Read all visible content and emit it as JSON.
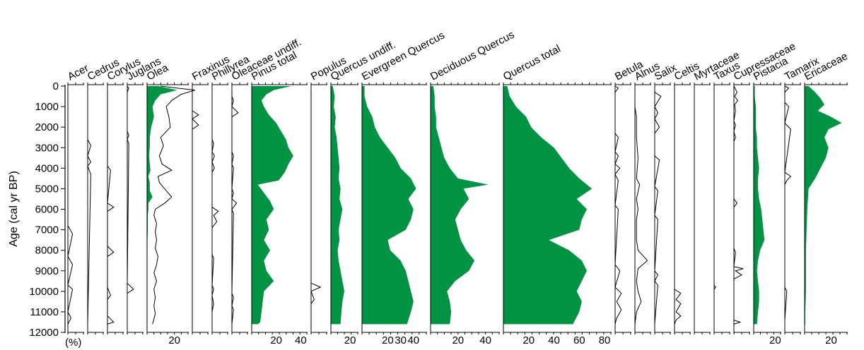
{
  "chart_data": {
    "type": "area",
    "ylabel": "Age (cal yr BP)",
    "yunits_note": "(%)",
    "ylim": [
      0,
      12000
    ],
    "yticks": [
      0,
      1000,
      2000,
      3000,
      4000,
      5000,
      6000,
      7000,
      8000,
      9000,
      10000,
      11000,
      12000
    ],
    "fill_color": "#009344",
    "line_color": "#000000",
    "panels": [
      {
        "name": "Acer",
        "style": "line",
        "xmax": 5,
        "ages": [
          0,
          6800,
          7200,
          8300,
          8700,
          9700,
          9900,
          11000,
          11300,
          11600
        ],
        "values": [
          0,
          0,
          1.5,
          0,
          1.5,
          0,
          1.5,
          0,
          1,
          0
        ]
      },
      {
        "name": "Cedrus",
        "style": "line",
        "xmax": 5,
        "ages": [
          0,
          2600,
          2900,
          3400,
          3700,
          3900,
          4300,
          11600
        ],
        "values": [
          0,
          0,
          1,
          0,
          1,
          0,
          1,
          0
        ]
      },
      {
        "name": "Corylus",
        "style": "line",
        "xmax": 5,
        "ages": [
          0,
          3900,
          4100,
          5700,
          5900,
          6100,
          7800,
          8100,
          8300,
          9800,
          10200,
          10400,
          11200,
          11500,
          11600
        ],
        "values": [
          0,
          0,
          1,
          0,
          2,
          0,
          0,
          2,
          0,
          0,
          1,
          0,
          0,
          2,
          0
        ]
      },
      {
        "name": "Juglans",
        "style": "line",
        "xmax": 5,
        "ages": [
          0,
          100,
          300,
          2200,
          2400,
          2600,
          2800,
          9600,
          9900,
          10100
        ],
        "values": [
          0,
          0.5,
          0,
          0,
          0.5,
          0,
          0.5,
          0,
          2,
          0
        ]
      },
      {
        "name": "Olea",
        "style": "dual",
        "xmax": 30,
        "ticks": [
          20
        ],
        "ages": [
          0,
          200,
          400,
          700,
          1000,
          1500,
          2000,
          2500,
          2900,
          3400,
          3800,
          4100,
          4400,
          4700,
          5100,
          5400,
          5700,
          6000,
          6300,
          6700,
          7100,
          7500,
          7900,
          8300,
          8700,
          9100,
          9500,
          9900,
          10300,
          10700,
          11100,
          11600
        ],
        "values": [
          8,
          22,
          10,
          6,
          4,
          5,
          3,
          2,
          2,
          1.5,
          2,
          2.5,
          1,
          2,
          2,
          4,
          1,
          1,
          0.5,
          0.5,
          0.5,
          0.3,
          0.3,
          0.2,
          0.2,
          0.2,
          0.2,
          0.2,
          0.2,
          0.2,
          0.2,
          0.2
        ],
        "total": [
          10,
          35,
          25,
          18,
          14,
          16,
          17,
          10,
          12,
          9,
          11,
          18,
          8,
          9,
          14,
          18,
          13,
          6,
          5,
          7,
          6,
          7,
          6,
          8,
          7,
          5,
          7,
          5,
          6,
          5,
          6,
          4
        ]
      },
      {
        "name": "Fraxinus",
        "style": "line",
        "xmax": 5,
        "ages": [
          0,
          1200,
          1400,
          1600,
          1900,
          2100,
          11600
        ],
        "values": [
          0,
          0,
          2,
          0,
          2,
          0,
          0
        ]
      },
      {
        "name": "Phillyrea",
        "style": "line",
        "xmax": 10,
        "ages": [
          0,
          2600,
          2800,
          3200,
          3400,
          3700,
          4000,
          4200,
          5900,
          6100,
          6300,
          6600,
          6900,
          8200,
          8400,
          9700,
          9900,
          10200,
          10600,
          11000,
          11600
        ],
        "values": [
          0,
          0,
          1,
          0,
          1.5,
          0,
          1.5,
          0,
          0,
          4,
          1,
          3,
          0,
          0,
          1,
          0,
          1,
          0,
          1,
          0,
          0
        ]
      },
      {
        "name": "Oleaceae undiff.",
        "style": "line",
        "xmax": 10,
        "ages": [
          0,
          500,
          700,
          1000,
          1300,
          1500,
          3200,
          3400,
          3800,
          4000,
          5000,
          5200,
          5500,
          5700,
          6000,
          6200,
          10100,
          10300,
          10700,
          10900,
          11600
        ],
        "values": [
          0,
          0,
          1,
          0,
          4,
          0,
          0,
          1,
          0,
          1,
          0,
          1,
          0,
          3,
          0,
          1,
          0,
          1,
          0,
          1,
          0
        ]
      },
      {
        "name": "Pinus total",
        "style": "area",
        "xmax": 45,
        "ticks": [
          20,
          40
        ],
        "ages": [
          0,
          200,
          400,
          700,
          1000,
          1400,
          1800,
          2200,
          2600,
          3000,
          3400,
          3800,
          4200,
          4600,
          4800,
          5200,
          5600,
          6000,
          6500,
          7000,
          7500,
          8000,
          8500,
          9000,
          9500,
          10000,
          10500,
          11000,
          11500,
          11600
        ],
        "values": [
          32,
          18,
          12,
          8,
          10,
          14,
          20,
          24,
          28,
          30,
          34,
          30,
          27,
          22,
          5,
          10,
          15,
          18,
          12,
          14,
          10,
          15,
          10,
          12,
          18,
          10,
          9,
          8,
          7,
          5
        ]
      },
      {
        "name": "Populus",
        "style": "line",
        "xmax": 5,
        "ages": [
          0,
          9600,
          9800,
          10000,
          10400,
          10600,
          11600
        ],
        "values": [
          0,
          0,
          3,
          0,
          1,
          0,
          0
        ]
      },
      {
        "name": "Quercus undiff.",
        "style": "area",
        "xmax": 28,
        "ticks": [
          20
        ],
        "ages": [
          0,
          500,
          1000,
          1500,
          2000,
          2500,
          3000,
          3500,
          4000,
          4500,
          5000,
          5500,
          6000,
          6500,
          7000,
          7500,
          8000,
          8500,
          9000,
          9500,
          10000,
          10500,
          11000,
          11600
        ],
        "values": [
          2,
          4,
          3,
          5,
          4,
          6,
          7,
          8,
          9,
          8,
          10,
          9,
          12,
          10,
          8,
          9,
          7,
          8,
          10,
          12,
          14,
          12,
          11,
          10
        ]
      },
      {
        "name": "Evergreen Quercus",
        "style": "area",
        "xmax": 50,
        "ticks": [
          20,
          30,
          40
        ],
        "ages": [
          0,
          500,
          1000,
          1500,
          2000,
          2500,
          3000,
          3500,
          4000,
          4500,
          5000,
          5500,
          6000,
          6500,
          7000,
          7500,
          8000,
          8500,
          9000,
          9500,
          10000,
          10500,
          11000,
          11600
        ],
        "values": [
          2,
          2,
          4,
          8,
          10,
          14,
          20,
          26,
          30,
          38,
          42,
          36,
          40,
          38,
          34,
          20,
          22,
          30,
          34,
          36,
          38,
          40,
          38,
          35
        ]
      },
      {
        "name": "Deciduous Quercus",
        "style": "area",
        "xmax": 50,
        "ticks": [
          20,
          40
        ],
        "ages": [
          0,
          500,
          1000,
          1500,
          2000,
          2500,
          3000,
          3500,
          4000,
          4500,
          4800,
          5000,
          5500,
          6000,
          6500,
          7000,
          7500,
          8000,
          8500,
          9000,
          9500,
          10000,
          10500,
          11000,
          11600
        ],
        "values": [
          2,
          3,
          3,
          4,
          4,
          6,
          8,
          10,
          14,
          20,
          42,
          24,
          28,
          22,
          18,
          20,
          22,
          26,
          32,
          28,
          18,
          12,
          14,
          15,
          14
        ]
      },
      {
        "name": "Quercus total",
        "style": "area",
        "xmax": 85,
        "ticks": [
          20,
          40,
          60,
          80
        ],
        "ages": [
          0,
          500,
          1000,
          1500,
          2000,
          2500,
          3000,
          3500,
          4000,
          4500,
          5000,
          5500,
          6000,
          6500,
          7000,
          7500,
          8000,
          8500,
          9000,
          9500,
          10000,
          10500,
          11000,
          11600
        ],
        "values": [
          3,
          5,
          10,
          18,
          22,
          30,
          40,
          46,
          52,
          60,
          70,
          58,
          66,
          62,
          60,
          36,
          52,
          62,
          66,
          62,
          58,
          62,
          60,
          55
        ]
      },
      {
        "name": "Betula",
        "style": "line",
        "xmax": 5,
        "ages": [
          0,
          100,
          300,
          2300,
          2500,
          3200,
          3400,
          3800,
          4000,
          4300,
          4600,
          5800,
          6000,
          8700,
          9000,
          9800,
          10100,
          10500,
          10900,
          11300,
          11600
        ],
        "values": [
          0,
          1,
          0,
          0,
          1,
          0,
          1,
          0,
          1.5,
          0,
          1,
          0,
          1,
          0,
          1.5,
          0,
          2,
          0.5,
          2,
          0.5,
          0
        ]
      },
      {
        "name": "Alnus",
        "style": "line",
        "xmax": 5,
        "ages": [
          0,
          1000,
          1500,
          2500,
          3500,
          4500,
          4800,
          5500,
          6000,
          6500,
          7500,
          8000,
          8500,
          8900,
          9500,
          10000,
          10500,
          11000,
          11600
        ],
        "values": [
          0,
          0,
          0.5,
          0.5,
          1,
          0.5,
          1.5,
          0.5,
          1,
          0.5,
          0.5,
          1,
          4,
          1,
          0.5,
          1,
          2,
          0.5,
          0
        ]
      },
      {
        "name": "Salix",
        "style": "line",
        "xmax": 5,
        "ages": [
          0,
          300,
          500,
          1000,
          1300,
          1600,
          2000,
          2300,
          3400,
          3600,
          4900,
          5100,
          6300,
          6500,
          9000,
          9200,
          9500,
          9700,
          11600
        ],
        "values": [
          0,
          0,
          2,
          0,
          1,
          0,
          1.5,
          0,
          0,
          1.5,
          0,
          1,
          0,
          1,
          0,
          1,
          0,
          1,
          0
        ]
      },
      {
        "name": "Celtis",
        "style": "line",
        "xmax": 5,
        "ages": [
          0,
          9900,
          10100,
          10400,
          10600,
          11000,
          11200,
          11400,
          11600
        ],
        "values": [
          0,
          0,
          2,
          0.5,
          2,
          0.5,
          2,
          0.5,
          0
        ]
      },
      {
        "name": "Myrtaceae",
        "style": "line",
        "xmax": 5,
        "ages": [
          0,
          11600
        ],
        "values": [
          0,
          0
        ]
      },
      {
        "name": "Taxus",
        "style": "line",
        "xmax": 5,
        "ages": [
          0,
          9700,
          9800,
          9900,
          11600
        ],
        "values": [
          0,
          0,
          0.5,
          0,
          0
        ]
      },
      {
        "name": "Cupressaceae",
        "style": "line",
        "xmax": 10,
        "ages": [
          0,
          300,
          500,
          700,
          900,
          1200,
          1700,
          1900,
          2200,
          2500,
          2700,
          5500,
          5700,
          5900,
          7900,
          8100,
          8800,
          8900,
          9000,
          9200,
          9400,
          11400,
          11500,
          11600
        ],
        "values": [
          0,
          2,
          0.5,
          2.5,
          0.5,
          1,
          0,
          1,
          0,
          1,
          0,
          0,
          2,
          0,
          0,
          1,
          0,
          6,
          1,
          5,
          0,
          0,
          4,
          0
        ]
      },
      {
        "name": "Pistacia",
        "style": "area",
        "xmax": 25,
        "ticks": [
          20
        ],
        "ages": [
          0,
          500,
          1000,
          1500,
          2000,
          2500,
          3000,
          3500,
          4000,
          4500,
          5000,
          5500,
          6000,
          6500,
          7000,
          7500,
          8000,
          8500,
          9000,
          9500,
          10000,
          10500,
          11000,
          11600
        ],
        "values": [
          1,
          1,
          2,
          2,
          2,
          3,
          3,
          4,
          5,
          4,
          4,
          5,
          7,
          8,
          9,
          10,
          6,
          4,
          3,
          4,
          5,
          5,
          4,
          3
        ]
      },
      {
        "name": "Tamarix",
        "style": "line",
        "xmax": 8,
        "ages": [
          0,
          100,
          300,
          800,
          1000,
          1800,
          2100,
          4200,
          4400,
          4600,
          4800,
          9800,
          10000,
          11400,
          11600
        ],
        "values": [
          0,
          2,
          0,
          0,
          2,
          0,
          3,
          0,
          3,
          1,
          0,
          0,
          1,
          0,
          0
        ]
      },
      {
        "name": "Ericaceae",
        "style": "area",
        "xmax": 32,
        "ticks": [
          20
        ],
        "ages": [
          0,
          300,
          600,
          900,
          1200,
          1500,
          1800,
          2100,
          2500,
          3000,
          3500,
          4000,
          4500,
          5000,
          6000,
          7000,
          8000,
          9000,
          10000,
          11000,
          11600
        ],
        "values": [
          3,
          8,
          12,
          15,
          10,
          20,
          28,
          18,
          15,
          18,
          16,
          12,
          8,
          3,
          2,
          1.5,
          1,
          1,
          1,
          0.5,
          0.5
        ]
      }
    ]
  }
}
